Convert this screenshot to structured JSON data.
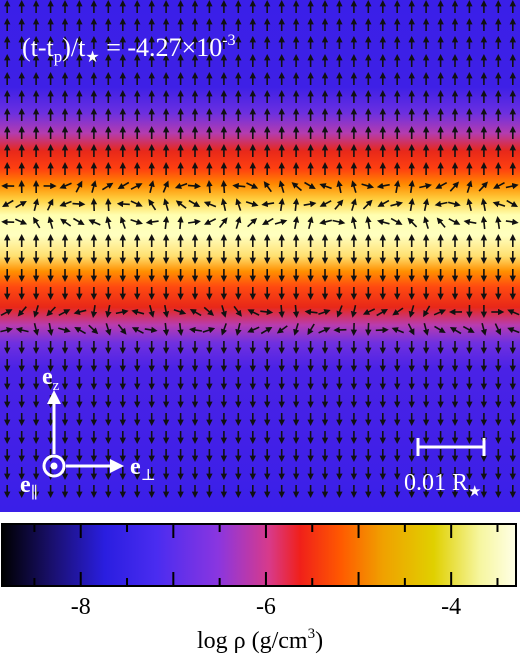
{
  "panel": {
    "time_label": {
      "prefix": "(t-t",
      "sub_p": "p",
      "mid": ")/t",
      "sub_star": "★",
      "eq": " = -4.27×10",
      "exp": "-3"
    },
    "axes_legend": {
      "z_base": "e",
      "z_sub": "z",
      "perp_base": "e",
      "perp_sub": "⊥",
      "par_base": "e",
      "par_sub": "∥"
    },
    "scale_bar": {
      "text": "0.01 R",
      "sub": "★"
    }
  },
  "colorbar": {
    "ticks": [
      "-8",
      "-6",
      "-4"
    ],
    "tick_values": [
      -8,
      -6,
      -4
    ],
    "range": [
      -8.85,
      -3.3
    ],
    "label_main": "log ρ (g/cm",
    "label_sup": "3",
    "label_close": ")"
  },
  "colors": {
    "background_low": "#3a1fe8",
    "band_mid": "#8a3fd8",
    "band_red": "#ee2a10",
    "band_orange": "#ff7a00",
    "core_yellow": "#ffffb0",
    "arrow": "#111111"
  }
}
